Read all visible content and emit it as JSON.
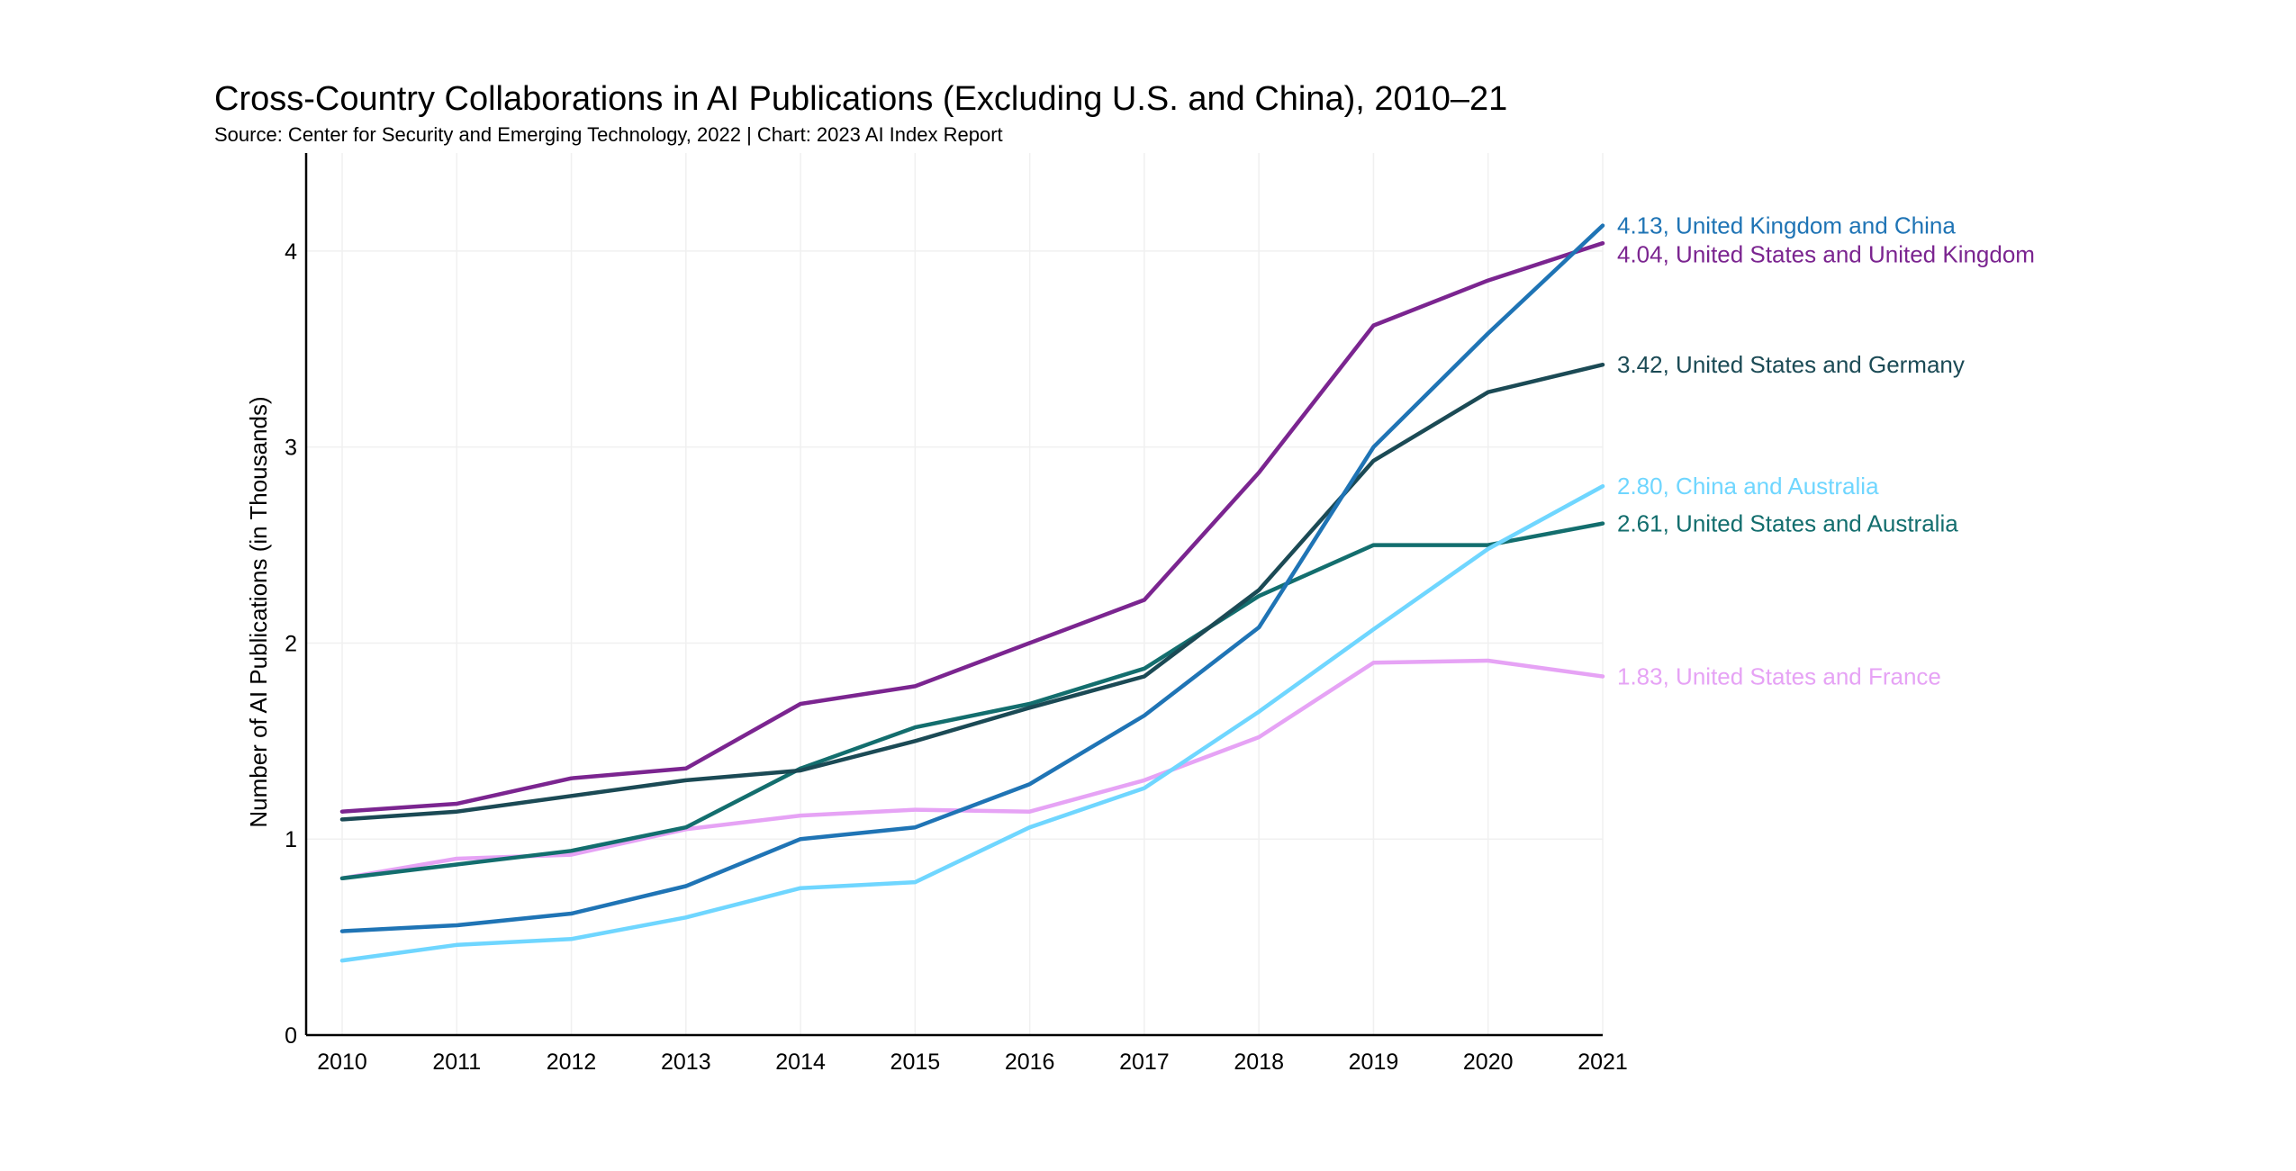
{
  "chart_data": {
    "type": "line",
    "title": "Cross-Country Collaborations in AI Publications (Excluding U.S. and China), 2010–21",
    "subtitle": "Source: Center for Security and Emerging Technology, 2022 | Chart: 2023 AI Index Report",
    "xlabel": "",
    "ylabel": "Number of AI Publications (in Thousands)",
    "x": [
      "2010",
      "2011",
      "2012",
      "2013",
      "2014",
      "2015",
      "2016",
      "2017",
      "2018",
      "2019",
      "2020",
      "2021"
    ],
    "ylim": [
      0,
      4.5
    ],
    "yticks": [
      "0",
      "1",
      "2",
      "3",
      "4"
    ],
    "grid": true,
    "legend": "end-of-line labels",
    "series": [
      {
        "name": "United States and France",
        "color": "#e6a3f5",
        "end_label": "1.83, United States and France",
        "values": [
          0.8,
          0.9,
          0.92,
          1.05,
          1.12,
          1.15,
          1.14,
          1.3,
          1.52,
          1.9,
          1.91,
          1.83
        ]
      },
      {
        "name": "United States and Australia",
        "color": "#136e6e",
        "end_label": "2.61, United States and Australia",
        "values": [
          0.8,
          0.87,
          0.94,
          1.06,
          1.36,
          1.57,
          1.69,
          1.87,
          2.24,
          2.5,
          2.5,
          2.61
        ]
      },
      {
        "name": "China and Australia",
        "color": "#6fd6ff",
        "end_label": "2.80, China and Australia",
        "values": [
          0.38,
          0.46,
          0.49,
          0.6,
          0.75,
          0.78,
          1.06,
          1.26,
          1.65,
          2.07,
          2.48,
          2.8
        ]
      },
      {
        "name": "United States and Germany",
        "color": "#1b4a55",
        "end_label": "3.42, United States and Germany",
        "values": [
          1.1,
          1.14,
          1.22,
          1.3,
          1.35,
          1.5,
          1.67,
          1.83,
          2.27,
          2.93,
          3.28,
          3.42
        ]
      },
      {
        "name": "United States and United Kingdom",
        "color": "#7b2590",
        "end_label": "4.04, United States and United Kingdom",
        "values": [
          1.14,
          1.18,
          1.31,
          1.36,
          1.69,
          1.78,
          2.0,
          2.22,
          2.87,
          3.62,
          3.85,
          4.04
        ]
      },
      {
        "name": "United Kingdom and China",
        "color": "#1f74b5",
        "end_label": "4.13, United Kingdom and China",
        "values": [
          0.53,
          0.56,
          0.62,
          0.76,
          1.0,
          1.06,
          1.28,
          1.63,
          2.08,
          3.0,
          3.58,
          4.13
        ]
      }
    ]
  }
}
